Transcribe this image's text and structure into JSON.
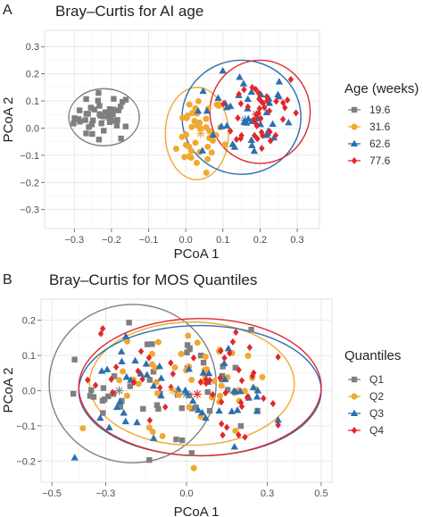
{
  "colors": {
    "g1": "#7f7f7f",
    "g2": "#f0a830",
    "g3": "#2c6fae",
    "g4": "#e0282c"
  },
  "chart_data": [
    {
      "panel_letter": "A",
      "type": "scatter",
      "title": "Bray–Curtis for AI age",
      "xlabel": "PCoA 1",
      "ylabel": "PCoA 2",
      "xlim": [
        -0.38,
        0.36
      ],
      "ylim": [
        -0.37,
        0.36
      ],
      "xticks": [
        -0.3,
        -0.2,
        -0.1,
        0.0,
        0.1,
        0.2,
        0.3
      ],
      "xtick_labels": [
        "−0.3",
        "−0.2",
        "−0.1",
        "0.0",
        "0.1",
        "0.2",
        "0.3"
      ],
      "yticks": [
        -0.3,
        -0.2,
        -0.1,
        0.0,
        0.1,
        0.2,
        0.3
      ],
      "ytick_labels": [
        "−0.3",
        "−0.2",
        "−0.1",
        "0.0",
        "0.1",
        "0.2",
        "0.3"
      ],
      "grid": true,
      "legend_position": "right",
      "legend_title": "Age (weeks)",
      "series": [
        {
          "name": "19.6",
          "marker": "square",
          "color": "#7f7f7f",
          "centroid": [
            -0.22,
            0.04
          ],
          "ellipse": {
            "cx": -0.22,
            "cy": 0.04,
            "rx": 0.095,
            "ry": 0.105,
            "angle": 0
          }
        },
        {
          "name": "31.6",
          "marker": "circle",
          "color": "#f0a830",
          "centroid": [
            0.04,
            -0.02
          ],
          "ellipse": {
            "cx": 0.03,
            "cy": -0.02,
            "rx": 0.085,
            "ry": 0.17,
            "angle": 0
          }
        },
        {
          "name": "62.6",
          "marker": "triangle",
          "color": "#2c6fae",
          "centroid": [
            0.16,
            0.03
          ],
          "ellipse": {
            "cx": 0.15,
            "cy": 0.04,
            "rx": 0.16,
            "ry": 0.21,
            "angle": 0
          }
        },
        {
          "name": "77.6",
          "marker": "diamond",
          "color": "#e0282c",
          "centroid": [
            0.19,
            0.05
          ],
          "ellipse": {
            "cx": 0.2,
            "cy": 0.06,
            "rx": 0.135,
            "ry": 0.19,
            "angle": 0
          }
        }
      ]
    },
    {
      "panel_letter": "B",
      "type": "scatter",
      "title": "Bray–Curtis for MOS Quantiles",
      "xlabel": "PCoA 1",
      "ylabel": "PCoA 2",
      "xlim": [
        -0.54,
        0.54
      ],
      "ylim": [
        -0.26,
        0.26
      ],
      "xticks": [
        -0.5,
        -0.3,
        0.0,
        0.3,
        0.5
      ],
      "xtick_labels": [
        "−0.5",
        "−0.3",
        "0.0",
        "0.3",
        "0.5"
      ],
      "yticks": [
        -0.2,
        -0.1,
        0.0,
        0.1,
        0.2
      ],
      "ytick_labels": [
        "−0.2",
        "−0.1",
        "0.0",
        "0.1",
        "0.2"
      ],
      "grid": true,
      "legend_position": "right",
      "legend_title": "Quantiles",
      "series": [
        {
          "name": "Q1",
          "marker": "square",
          "color": "#7f7f7f",
          "centroid": [
            -0.25,
            0.0
          ],
          "ellipse": {
            "cx": -0.2,
            "cy": 0.02,
            "rx": 0.31,
            "ry": 0.225,
            "angle": 0
          }
        },
        {
          "name": "Q2",
          "marker": "circle",
          "color": "#f0a830",
          "centroid": [
            -0.05,
            0.0
          ],
          "ellipse": {
            "cx": 0.02,
            "cy": 0.02,
            "rx": 0.38,
            "ry": 0.175,
            "angle": 0
          }
        },
        {
          "name": "Q3",
          "marker": "triangle",
          "color": "#2c6fae",
          "centroid": [
            0.0,
            -0.01
          ],
          "ellipse": {
            "cx": 0.05,
            "cy": 0.0,
            "rx": 0.45,
            "ry": 0.185,
            "angle": 0
          }
        },
        {
          "name": "Q4",
          "marker": "diamond",
          "color": "#e0282c",
          "centroid": [
            0.04,
            -0.01
          ],
          "ellipse": {
            "cx": 0.05,
            "cy": 0.01,
            "rx": 0.45,
            "ry": 0.195,
            "angle": 0
          }
        }
      ]
    }
  ]
}
